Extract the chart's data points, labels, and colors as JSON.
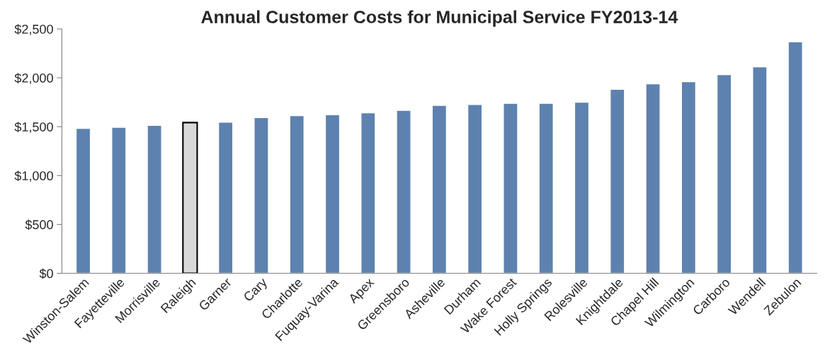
{
  "chart_data": {
    "type": "bar",
    "title": "Annual Customer Costs for Municipal Service FY2013-14",
    "categories": [
      "Winston-Salem",
      "Fayetteville",
      "Morrisville",
      "Raleigh",
      "Garner",
      "Cary",
      "Charlotte",
      "Fuquay-Varina",
      "Apex",
      "Greensboro",
      "Asheville",
      "Durham",
      "Wake Forest",
      "Holly Springs",
      "Rolesville",
      "Knightdale",
      "Chapel Hill",
      "Wilmington",
      "Carboro",
      "Wendell",
      "Zebulon"
    ],
    "values": [
      1483,
      1494,
      1514,
      1542,
      1547,
      1594,
      1614,
      1622,
      1642,
      1667,
      1718,
      1728,
      1739,
      1739,
      1750,
      1882,
      1939,
      1960,
      2032,
      2113,
      2370
    ],
    "colors": [
      "#4f81bd",
      "#4f81bd",
      "#4f81bd",
      "#d9d9d9",
      "#4f81bd",
      "#4f81bd",
      "#4f81bd",
      "#4f81bd",
      "#4f81bd",
      "#4f81bd",
      "#4f81bd",
      "#4f81bd",
      "#4f81bd",
      "#4f81bd",
      "#4f81bd",
      "#4f81bd",
      "#4f81bd",
      "#4f81bd",
      "#4f81bd",
      "#4f81bd",
      "#4f81bd"
    ],
    "ylim": [
      0,
      2500
    ],
    "yticks": [
      {
        "value": 0,
        "label": "$0"
      },
      {
        "value": 500,
        "label": "$500"
      },
      {
        "value": 1000,
        "label": "$1,000"
      },
      {
        "value": 1500,
        "label": "$1,500"
      },
      {
        "value": 2000,
        "label": "$2,000"
      },
      {
        "value": 2500,
        "label": "$2,500"
      }
    ],
    "grid": false,
    "legend": false
  }
}
